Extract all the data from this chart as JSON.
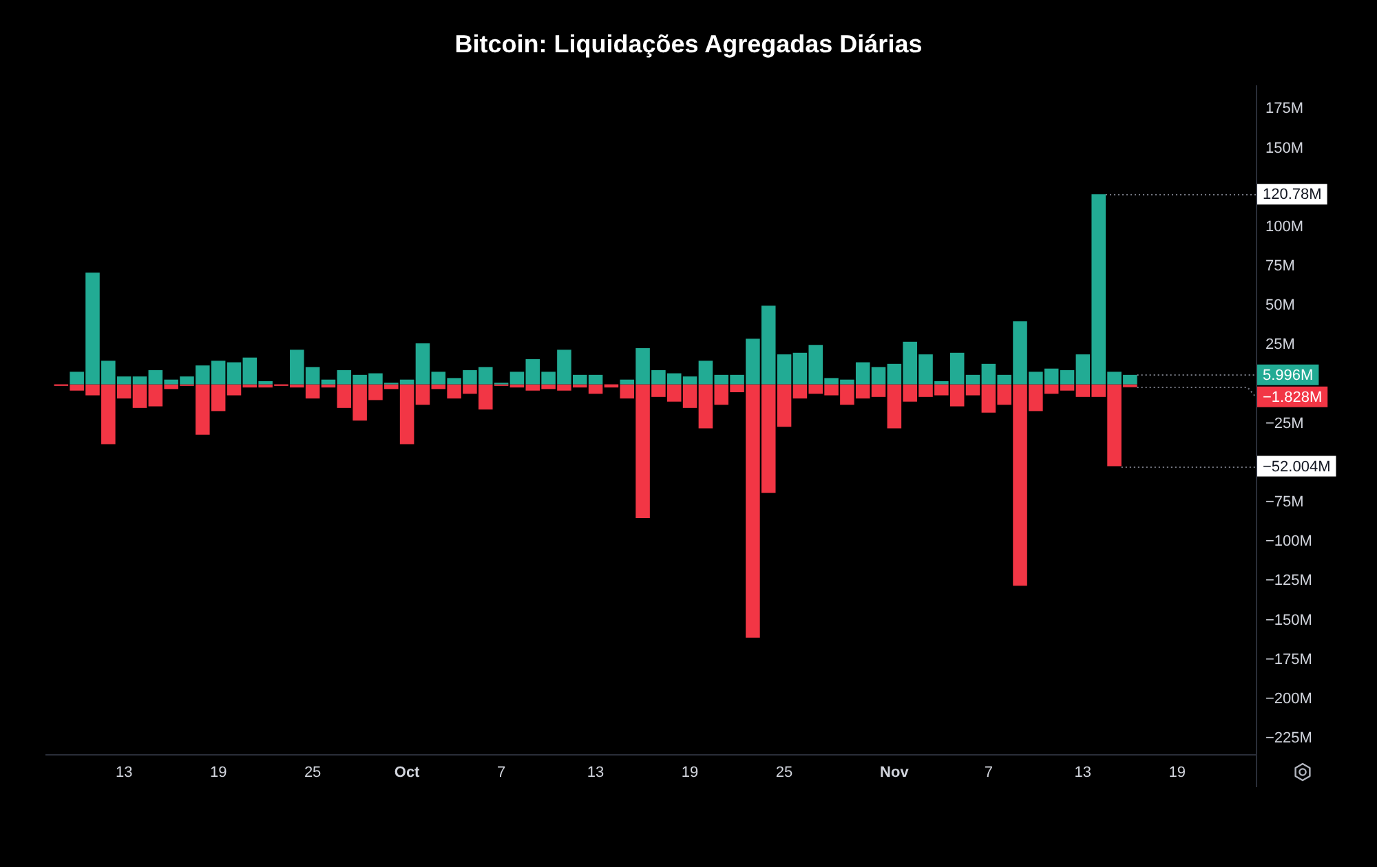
{
  "chart_data": {
    "type": "bar",
    "title": "Bitcoin: Liquidações Agregadas Diárias",
    "x": [
      "--09-09",
      "--09-10",
      "--09-11",
      "--09-12",
      "--09-13",
      "--09-14",
      "--09-15",
      "--09-16",
      "--09-17",
      "--09-18",
      "--09-19",
      "--09-20",
      "--09-21",
      "--09-22",
      "--09-23",
      "--09-24",
      "--09-25",
      "--09-26",
      "--09-27",
      "--09-28",
      "--09-29",
      "--09-30",
      "--10-01",
      "--10-02",
      "--10-03",
      "--10-04",
      "--10-05",
      "--10-06",
      "--10-07",
      "--10-08",
      "--10-09",
      "--10-10",
      "--10-11",
      "--10-12",
      "--10-13",
      "--10-14",
      "--10-15",
      "--10-16",
      "--10-17",
      "--10-18",
      "--10-19",
      "--10-20",
      "--10-21",
      "--10-22",
      "--10-23",
      "--10-24",
      "--10-25",
      "--10-26",
      "--10-27",
      "--10-28",
      "--10-29",
      "--10-30",
      "--10-31",
      "--11-01",
      "--11-02",
      "--11-03",
      "--11-04",
      "--11-05",
      "--11-06",
      "--11-07",
      "--11-08",
      "--11-09",
      "--11-10",
      "--11-11",
      "--11-12",
      "--11-13",
      "--11-14",
      "--11-15",
      "--11-16"
    ],
    "series": [
      {
        "color": "#22ab94",
        "values": [
          null,
          8,
          71,
          15,
          5,
          5,
          9,
          3,
          5,
          12,
          15,
          14,
          17,
          2,
          null,
          22,
          11,
          3,
          9,
          6,
          7,
          1,
          3,
          26,
          8,
          4,
          9,
          11,
          1,
          8,
          16,
          8,
          22,
          6,
          6,
          null,
          3,
          23,
          9,
          7,
          5,
          15,
          6,
          6,
          29,
          50,
          19,
          20,
          25,
          4,
          3,
          14,
          11,
          13,
          27,
          19,
          2,
          20,
          6,
          13,
          6,
          40,
          8,
          10,
          9,
          19,
          120.78,
          8,
          5.996
        ]
      },
      {
        "color": "#f23645",
        "values": [
          -1,
          -4,
          -7,
          -38,
          -9,
          -15,
          -14,
          -3,
          -1,
          -32,
          -17,
          -7,
          -2,
          -2,
          -1,
          -2,
          -9,
          -2,
          -15,
          -23,
          -10,
          -3,
          -38,
          -13,
          -3,
          -9,
          -6,
          -16,
          -1,
          -2,
          -4,
          -3,
          -4,
          -2,
          -6,
          -2,
          -9,
          -85,
          -8,
          -11,
          -15,
          -28,
          -13,
          -5,
          -161,
          -69,
          -27,
          -9,
          -6,
          -7,
          -13,
          -9,
          -8,
          -28,
          -11,
          -8,
          -7,
          -14,
          -7,
          -18,
          -13,
          -128,
          -17,
          -6,
          -4,
          -8,
          -8,
          -52.004,
          -1.828
        ]
      }
    ],
    "stacked": true,
    "xlim": [
      "--09-08",
      "--11-24"
    ],
    "xticks": [
      {
        "value": "--09-13",
        "label": "13"
      },
      {
        "value": "--09-19",
        "label": "19"
      },
      {
        "value": "--09-25",
        "label": "25"
      },
      {
        "value": "--10-01",
        "label": "Oct"
      },
      {
        "value": "--10-07",
        "label": "7"
      },
      {
        "value": "--10-13",
        "label": "13"
      },
      {
        "value": "--10-19",
        "label": "19"
      },
      {
        "value": "--10-25",
        "label": "25"
      },
      {
        "value": "--11-01",
        "label": "Nov"
      },
      {
        "value": "--11-07",
        "label": "7"
      },
      {
        "value": "--11-13",
        "label": "13"
      },
      {
        "value": "--11-19",
        "label": "19"
      }
    ],
    "ylim": [
      -235,
      190
    ],
    "yticks": [
      {
        "value": 175,
        "label": "175M"
      },
      {
        "value": 150,
        "label": "150M"
      },
      {
        "value": 100,
        "label": "100M"
      },
      {
        "value": 75,
        "label": "75M"
      },
      {
        "value": 50,
        "label": "50M"
      },
      {
        "value": 25,
        "label": "25M"
      },
      {
        "value": -25,
        "label": "−25M"
      },
      {
        "value": -75,
        "label": "−75M"
      },
      {
        "value": -100,
        "label": "−100M"
      },
      {
        "value": -125,
        "label": "−125M"
      },
      {
        "value": -150,
        "label": "−150M"
      },
      {
        "value": -175,
        "label": "−175M"
      },
      {
        "value": -200,
        "label": "−200M"
      },
      {
        "value": -225,
        "label": "−225M"
      }
    ],
    "annotations": [
      {
        "text": "120.78M",
        "x": "--11-14",
        "y": 120.78
      },
      {
        "text": "−52.004M",
        "x": "--11-15",
        "y": -52.004
      },
      {
        "text": "5.996M",
        "x": "--11-16",
        "y": 5.996
      },
      {
        "text": "−1.828M",
        "x": "--11-16",
        "y": -1.828
      }
    ]
  }
}
